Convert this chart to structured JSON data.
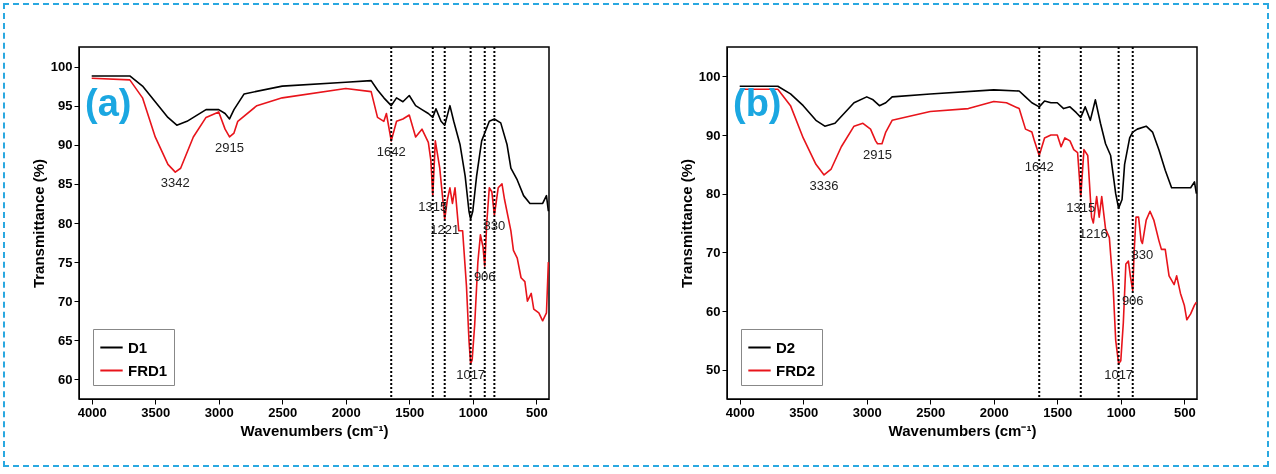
{
  "chart_data": [
    {
      "type": "line",
      "xlabel": "Wavenumbers (cm⁻¹)",
      "ylabel": "Transmittance (%)",
      "xlim": [
        4100,
        400
      ],
      "ylim": [
        57.5,
        102.5
      ],
      "xticks": [
        4000,
        3500,
        3000,
        2500,
        2000,
        1500,
        1000,
        500
      ],
      "yticks": [
        60,
        65,
        70,
        75,
        80,
        85,
        90,
        95,
        100
      ],
      "grid": false,
      "legend": "bottom left",
      "line_style": "solid",
      "series": [
        {
          "name": "D1",
          "color": "#000000",
          "x": [
            4000,
            3700,
            3600,
            3500,
            3400,
            3330,
            3250,
            3100,
            3000,
            2950,
            2915,
            2880,
            2800,
            2500,
            2000,
            1800,
            1750,
            1700,
            1642,
            1600,
            1550,
            1500,
            1450,
            1400,
            1350,
            1315,
            1290,
            1250,
            1221,
            1180,
            1150,
            1100,
            1060,
            1030,
            1017,
            1000,
            970,
            930,
            906,
            870,
            830,
            780,
            730,
            700,
            650,
            600,
            550,
            500,
            450,
            420,
            405
          ],
          "values": [
            98.8,
            98.8,
            97.5,
            95.5,
            93.5,
            92.5,
            93,
            94.5,
            94.5,
            94,
            93.3,
            94.5,
            96.5,
            97.5,
            98,
            98.2,
            97,
            96,
            95,
            96,
            95.5,
            96.3,
            95,
            94.5,
            94,
            93.5,
            94.6,
            93,
            92.5,
            95,
            93,
            90,
            86,
            81.5,
            80.5,
            81.5,
            86,
            90.5,
            91.5,
            93,
            93.3,
            92.8,
            90,
            87,
            85.5,
            83.5,
            82.5,
            82.5,
            82.5,
            83.5,
            81.5
          ]
        },
        {
          "name": "FRD1",
          "color": "#e8141b",
          "x": [
            4000,
            3700,
            3600,
            3500,
            3400,
            3342,
            3300,
            3200,
            3100,
            3000,
            2950,
            2915,
            2880,
            2850,
            2700,
            2500,
            2000,
            1800,
            1750,
            1700,
            1680,
            1642,
            1600,
            1550,
            1500,
            1450,
            1400,
            1350,
            1330,
            1315,
            1295,
            1260,
            1221,
            1200,
            1180,
            1160,
            1140,
            1110,
            1080,
            1050,
            1030,
            1017,
            1005,
            985,
            960,
            940,
            920,
            906,
            890,
            870,
            850,
            830,
            800,
            770,
            750,
            700,
            680,
            650,
            620,
            590,
            570,
            540,
            520,
            480,
            450,
            420,
            405
          ],
          "values": [
            98.5,
            98.3,
            96,
            91,
            87.5,
            86.5,
            87,
            91,
            93.5,
            94.2,
            92,
            91,
            91.5,
            93,
            95,
            96,
            97.2,
            96.8,
            93.5,
            93,
            94,
            90.5,
            93,
            93.3,
            93.8,
            91,
            92,
            90.3,
            88,
            83.5,
            90.5,
            87,
            80.5,
            83,
            84.5,
            82.5,
            84.5,
            79,
            79,
            72,
            65,
            62,
            62.5,
            67,
            75,
            78.5,
            77,
            74.5,
            80,
            84.5,
            84,
            81,
            84.5,
            85,
            83,
            79,
            76.5,
            75.5,
            73,
            72.5,
            70,
            71,
            69,
            68.5,
            67.5,
            68.5,
            75
          ]
        }
      ],
      "ref_lines": [
        {
          "axis": "x",
          "value": 1642,
          "color": "#000000",
          "line_style": "dotted"
        },
        {
          "axis": "x",
          "value": 1315,
          "color": "#000000",
          "line_style": "dotted"
        },
        {
          "axis": "x",
          "value": 1221,
          "color": "#000000",
          "line_style": "dotted"
        },
        {
          "axis": "x",
          "value": 1017,
          "color": "#000000",
          "line_style": "dotted"
        },
        {
          "axis": "x",
          "value": 906,
          "color": "#000000",
          "line_style": "dotted"
        },
        {
          "axis": "x",
          "value": 830,
          "color": "#000000",
          "line_style": "dotted"
        }
      ],
      "annotations": [
        "(a)",
        {
          "text": "3342",
          "x": 3342,
          "y": 86.5
        },
        {
          "text": "2915",
          "x": 2915,
          "y": 91
        },
        {
          "text": "1642",
          "x": 1642,
          "y": 90.5
        },
        {
          "text": "1315",
          "x": 1315,
          "y": 83.5
        },
        {
          "text": "1221",
          "x": 1221,
          "y": 80.5
        },
        {
          "text": "1017",
          "x": 1017,
          "y": 62
        },
        {
          "text": "906",
          "x": 906,
          "y": 74.5
        },
        {
          "text": "830",
          "x": 830,
          "y": 81
        }
      ]
    },
    {
      "type": "line",
      "xlabel": "Wavenumbers (cm⁻¹)",
      "ylabel": "Transmittance (%)",
      "xlim": [
        4100,
        400
      ],
      "ylim": [
        45,
        105
      ],
      "xticks": [
        4000,
        3500,
        3000,
        2500,
        2000,
        1500,
        1000,
        500
      ],
      "yticks": [
        50,
        60,
        70,
        80,
        90,
        100
      ],
      "grid": false,
      "legend": "bottom left",
      "line_style": "solid",
      "series": [
        {
          "name": "D2",
          "color": "#000000",
          "x": [
            4000,
            3700,
            3600,
            3500,
            3400,
            3330,
            3250,
            3100,
            3000,
            2950,
            2900,
            2850,
            2800,
            2500,
            2000,
            1800,
            1750,
            1700,
            1642,
            1600,
            1550,
            1500,
            1450,
            1400,
            1350,
            1315,
            1280,
            1240,
            1200,
            1160,
            1120,
            1080,
            1040,
            1017,
            990,
            970,
            930,
            906,
            870,
            800,
            750,
            700,
            650,
            600,
            550,
            500,
            450,
            420,
            405
          ],
          "values": [
            98.3,
            98.3,
            97,
            95,
            92.5,
            91.5,
            92,
            95.5,
            96.5,
            96,
            95,
            95.5,
            96.5,
            97,
            97.7,
            97.5,
            96.5,
            95.5,
            94.8,
            95.8,
            95.5,
            95.5,
            94.5,
            94.8,
            93.8,
            93,
            94.8,
            92.5,
            96,
            92,
            88.5,
            86.5,
            80,
            77.5,
            79,
            85,
            89.5,
            90.5,
            91,
            91.5,
            90.5,
            87.5,
            84,
            81,
            81,
            81,
            81,
            82,
            80
          ]
        },
        {
          "name": "FRD2",
          "color": "#e8141b",
          "x": [
            4000,
            3700,
            3600,
            3500,
            3400,
            3336,
            3280,
            3200,
            3100,
            3030,
            2970,
            2930,
            2915,
            2880,
            2850,
            2800,
            2500,
            2200,
            2000,
            1900,
            1800,
            1750,
            1700,
            1680,
            1642,
            1600,
            1550,
            1500,
            1470,
            1440,
            1400,
            1370,
            1340,
            1315,
            1290,
            1260,
            1230,
            1216,
            1190,
            1170,
            1150,
            1120,
            1090,
            1060,
            1040,
            1017,
            1000,
            980,
            960,
            940,
            925,
            906,
            895,
            880,
            860,
            840,
            830,
            800,
            770,
            740,
            700,
            680,
            650,
            620,
            580,
            560,
            530,
            500,
            480,
            450,
            420,
            405
          ],
          "values": [
            97.8,
            97.8,
            95,
            89.5,
            85,
            83.2,
            84.2,
            88,
            91.5,
            92,
            91,
            89,
            88.5,
            88.5,
            90.5,
            92.5,
            94,
            94.5,
            95.7,
            95.5,
            94.5,
            91,
            90.5,
            89,
            86.5,
            89.5,
            90,
            90,
            88,
            89.5,
            89,
            87.5,
            87,
            79.5,
            87.5,
            86.5,
            76,
            75,
            79.5,
            76,
            79.5,
            74,
            72.5,
            64,
            55,
            51,
            51.5,
            58,
            68,
            68.5,
            66,
            63.5,
            70,
            76,
            76,
            72,
            71.5,
            75.5,
            77,
            75.5,
            72,
            70.5,
            70.5,
            66,
            64.5,
            66,
            63,
            61,
            58.5,
            59.5,
            61,
            61.5
          ]
        }
      ],
      "ref_lines": [
        {
          "axis": "x",
          "value": 1642,
          "color": "#000000",
          "line_style": "dotted"
        },
        {
          "axis": "x",
          "value": 1315,
          "color": "#000000",
          "line_style": "dotted"
        },
        {
          "axis": "x",
          "value": 1017,
          "color": "#000000",
          "line_style": "dotted"
        },
        {
          "axis": "x",
          "value": 906,
          "color": "#000000",
          "line_style": "dotted"
        }
      ],
      "annotations": [
        "(b)",
        {
          "text": "3336",
          "x": 3336,
          "y": 83.2
        },
        {
          "text": "2915",
          "x": 2915,
          "y": 88.5
        },
        {
          "text": "1642",
          "x": 1642,
          "y": 86.5
        },
        {
          "text": "1315",
          "x": 1315,
          "y": 79.5
        },
        {
          "text": "1216",
          "x": 1216,
          "y": 75
        },
        {
          "text": "1017",
          "x": 1017,
          "y": 51
        },
        {
          "text": "906",
          "x": 906,
          "y": 63.5
        },
        {
          "text": "830",
          "x": 830,
          "y": 71.5
        }
      ]
    }
  ]
}
